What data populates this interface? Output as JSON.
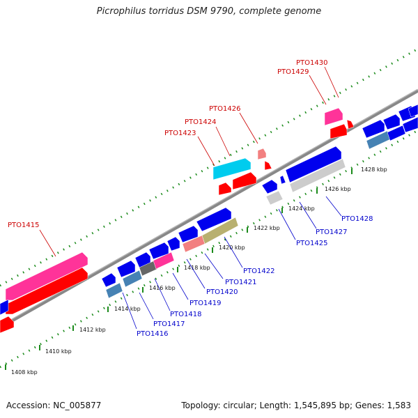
{
  "title": "Picrophilus torridus DSM 9790, complete genome",
  "accession": "Accession: NC_005877",
  "summary": "Topology: circular; Length: 1,545,895 bp; Genes: 1,583",
  "colors": {
    "backbone": "#888888",
    "tick_green": "#1a8a1a",
    "forward_red": "#ff0000",
    "forward_pink": "#ff3399",
    "forward_cyan": "#00ccee",
    "forward_salmon": "#f28080",
    "reverse_blue": "#0000ee",
    "reverse_steel": "#4682b4",
    "reverse_gray": "#666666",
    "reverse_lightgray": "#cccccc",
    "reverse_olive": "#b8b070",
    "label_red": "#cc0000",
    "label_blue": "#0000cc"
  },
  "ticks": [
    "1408 kbp",
    "1410 kbp",
    "1412 kbp",
    "1414 kbp",
    "1416 kbp",
    "1418 kbp",
    "1420 kbp",
    "1422 kbp",
    "1424 kbp",
    "1426 kbp",
    "1428 kbp"
  ],
  "forward_labels": [
    "PTO1415",
    "PTO1423",
    "PTO1424",
    "PTO1426",
    "PTO1429",
    "PTO1430"
  ],
  "reverse_labels": [
    "PTO1416",
    "PTO1417",
    "PTO1418",
    "PTO1419",
    "PTO1420",
    "PTO1421",
    "PTO1422",
    "PTO1425",
    "PTO1427",
    "PTO1428"
  ]
}
